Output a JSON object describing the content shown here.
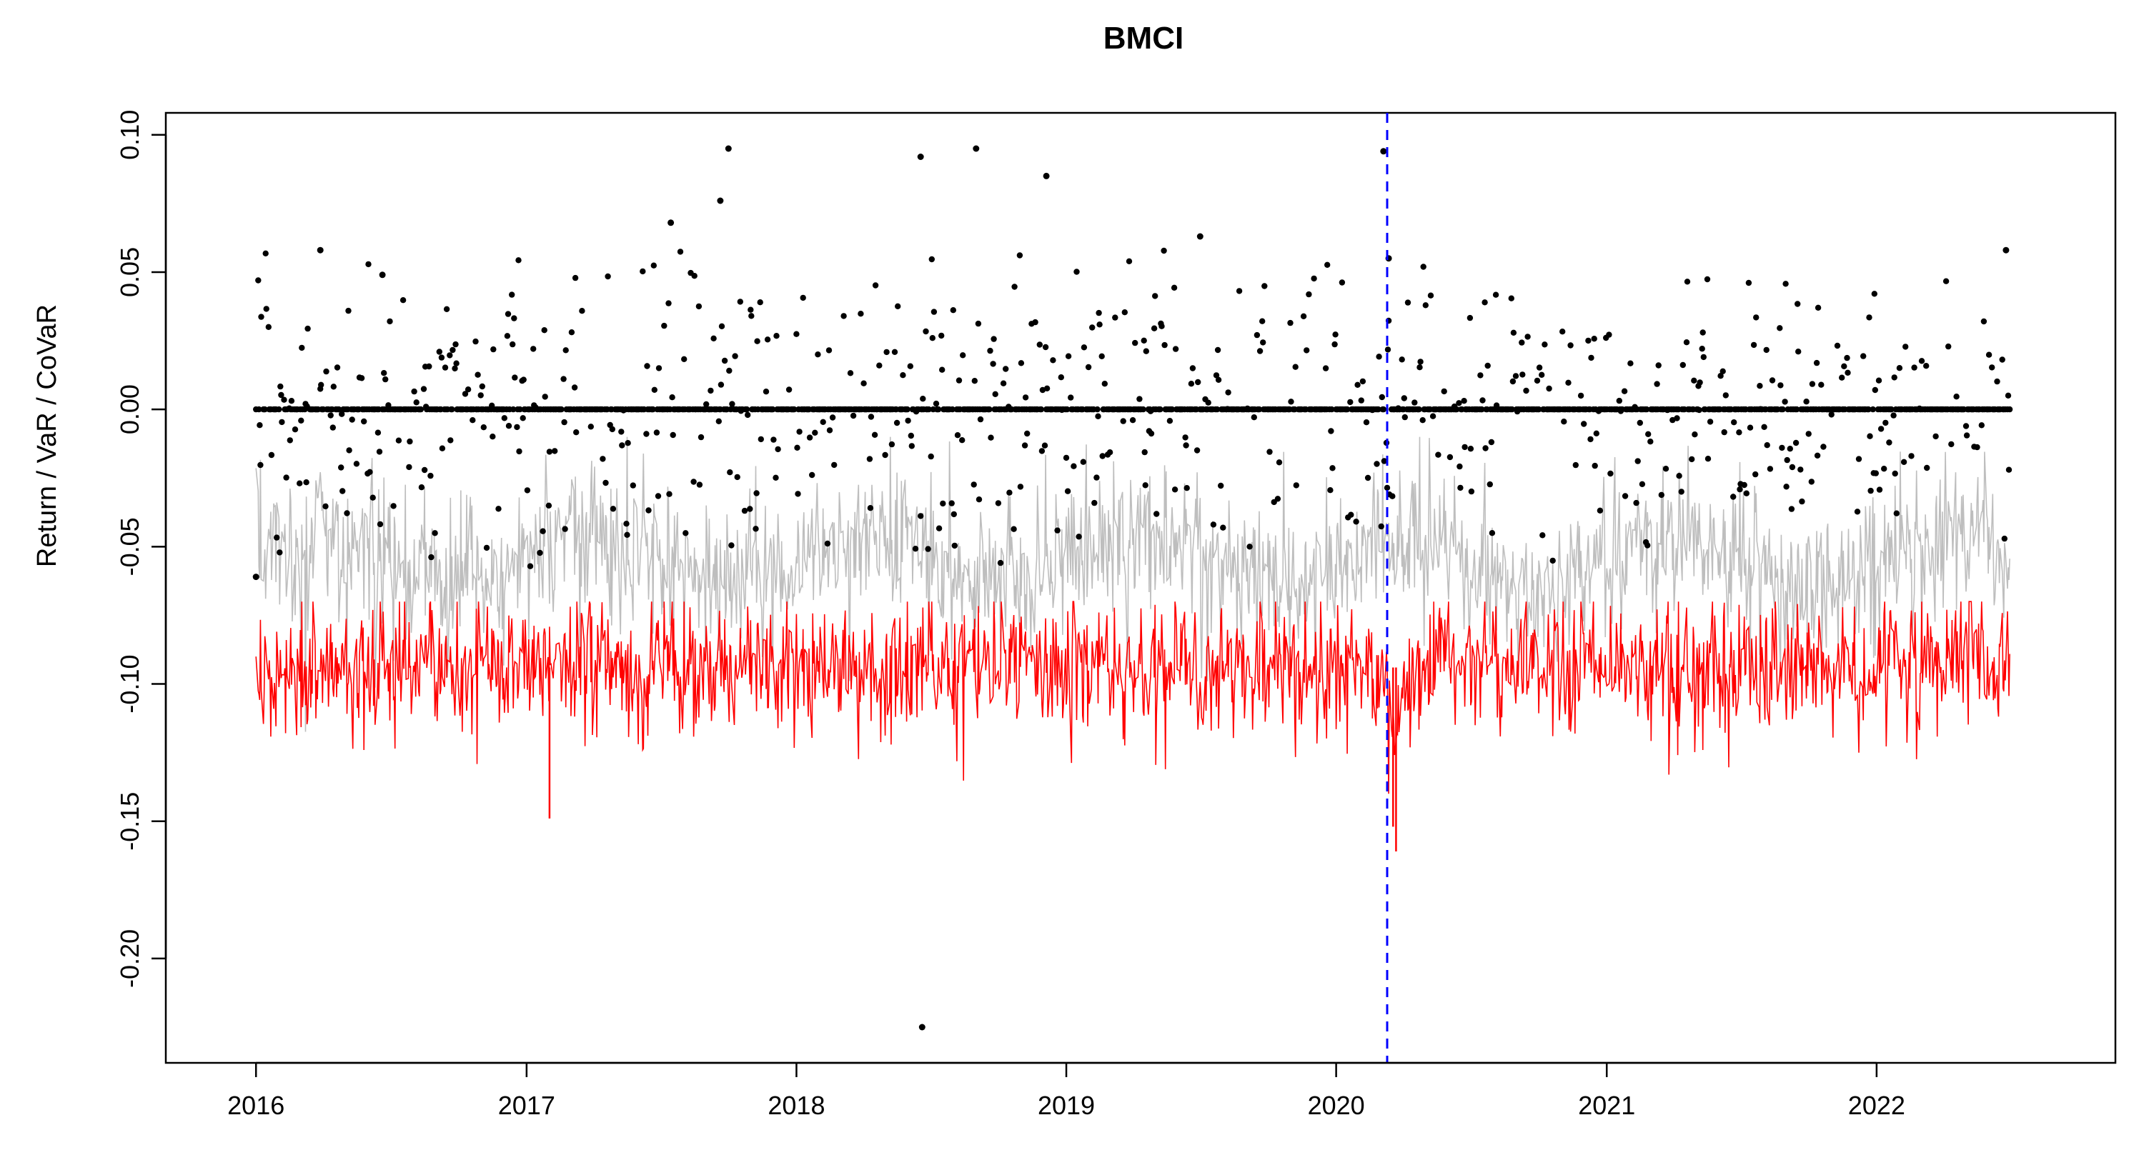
{
  "chart_data": {
    "type": "scatter",
    "title": "BMCI",
    "xlabel": "",
    "ylabel": "Return / VaR / CoVaR",
    "x_ticks": [
      "2016",
      "2017",
      "2018",
      "2019",
      "2020",
      "2021",
      "2022"
    ],
    "y_ticks": [
      "0.10",
      "0.05",
      "0.00",
      "-0.05",
      "-0.10",
      "-0.15",
      "-0.20"
    ],
    "xlim": [
      "2015-09-01",
      "2022-11-20"
    ],
    "ylim": [
      -0.238,
      0.108
    ],
    "grid": false,
    "legend": "none",
    "x_range": [
      "2016-01-01",
      "2022-06-30"
    ],
    "event_line": {
      "x": "2020-03-10",
      "color": "#0000ff",
      "style": "dashed"
    },
    "series": [
      {
        "type": "scatter",
        "color": "#000000",
        "marker": "dot",
        "description_points": [
          {
            "x": "2016-01-01",
            "y": -0.061
          },
          {
            "x": "2016-03-28",
            "y": 0.058
          },
          {
            "x": "2016-06-20",
            "y": 0.049
          },
          {
            "x": "2017-07-15",
            "y": 0.068
          },
          {
            "x": "2017-09-20",
            "y": 0.076
          },
          {
            "x": "2017-10-01",
            "y": 0.095
          },
          {
            "x": "2018-06-18",
            "y": 0.092
          },
          {
            "x": "2018-06-20",
            "y": -0.225
          },
          {
            "x": "2018-09-01",
            "y": 0.095
          },
          {
            "x": "2018-12-05",
            "y": 0.085
          },
          {
            "x": "2019-07-01",
            "y": 0.063
          },
          {
            "x": "2020-03-05",
            "y": 0.094
          },
          {
            "x": "2020-03-12",
            "y": 0.055
          },
          {
            "x": "2022-06-25",
            "y": 0.058
          }
        ],
        "baseline_y": 0.0,
        "spread": 0.035
      },
      {
        "type": "line",
        "color": "#bebebe",
        "name_hidden": true,
        "mean": -0.055,
        "amplitude": 0.022
      },
      {
        "type": "line",
        "color": "#ff0000",
        "name_hidden": true,
        "mean": -0.094,
        "amplitude": 0.012,
        "extremes": [
          {
            "x": "2017-02-01",
            "y": -0.149
          },
          {
            "x": "2020-03-18",
            "y": -0.152
          },
          {
            "x": "2020-03-22",
            "y": -0.161
          }
        ]
      }
    ]
  }
}
